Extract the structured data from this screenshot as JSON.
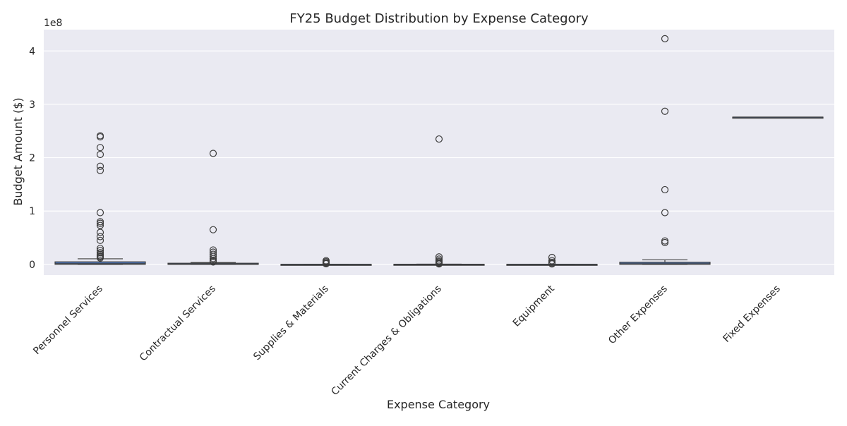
{
  "chart_data": {
    "type": "box",
    "title": "FY25 Budget Distribution by Expense Category",
    "xlabel": "Expense Category",
    "ylabel": "Budget Amount ($)",
    "y_offset_label": "1e8",
    "y_scale_multiplier": 100000000,
    "ylim": [
      -0.2,
      4.4
    ],
    "yticks": [
      0,
      1,
      2,
      3,
      4
    ],
    "grid": true,
    "background_color": "#eaeaf2",
    "grid_color": "#ffffff",
    "categories": [
      "Personnel Services",
      "Contractual Services",
      "Supplies & Materials",
      "Current Charges & Obligations",
      "Equipment",
      "Other Expenses",
      "Fixed Expenses"
    ],
    "boxes": [
      {
        "category": "Personnel Services",
        "whisker_low": 0,
        "q1": 0.002,
        "median": 0.012,
        "q3": 0.048,
        "whisker_high": 0.105,
        "outliers": [
          2.41,
          2.39,
          2.19,
          2.06,
          1.84,
          1.76,
          0.97,
          0.8,
          0.77,
          0.73,
          0.6,
          0.52,
          0.45,
          0.3,
          0.26,
          0.22,
          0.19,
          0.16,
          0.14,
          0.12
        ]
      },
      {
        "category": "Contractual Services",
        "whisker_low": 0,
        "q1": 0.001,
        "median": 0.005,
        "q3": 0.022,
        "whisker_high": 0.035,
        "outliers": [
          2.08,
          0.65,
          0.27,
          0.23,
          0.19,
          0.15,
          0.11,
          0.08,
          0.06,
          0.045
        ]
      },
      {
        "category": "Supplies & Materials",
        "whisker_low": 0,
        "q1": 0.0002,
        "median": 0.0008,
        "q3": 0.002,
        "whisker_high": 0.004,
        "outliers": [
          0.07,
          0.05,
          0.03,
          0.02,
          0.012
        ]
      },
      {
        "category": "Current Charges & Obligations",
        "whisker_low": 0,
        "q1": 0.0002,
        "median": 0.001,
        "q3": 0.003,
        "whisker_high": 0.006,
        "outliers": [
          2.35,
          0.14,
          0.1,
          0.07,
          0.05,
          0.03,
          0.02,
          0.01
        ]
      },
      {
        "category": "Equipment",
        "whisker_low": 0,
        "q1": 0.0002,
        "median": 0.0008,
        "q3": 0.002,
        "whisker_high": 0.004,
        "outliers": [
          0.13,
          0.07,
          0.04,
          0.02,
          0.01
        ]
      },
      {
        "category": "Other Expenses",
        "whisker_low": 0,
        "q1": 0.002,
        "median": 0.01,
        "q3": 0.04,
        "whisker_high": 0.085,
        "outliers": [
          4.23,
          2.87,
          1.4,
          0.97,
          0.44,
          0.41
        ]
      },
      {
        "category": "Fixed Expenses",
        "whisker_low": 2.76,
        "q1": 2.76,
        "median": 2.76,
        "q3": 2.76,
        "whisker_high": 2.76,
        "outliers": []
      }
    ]
  }
}
